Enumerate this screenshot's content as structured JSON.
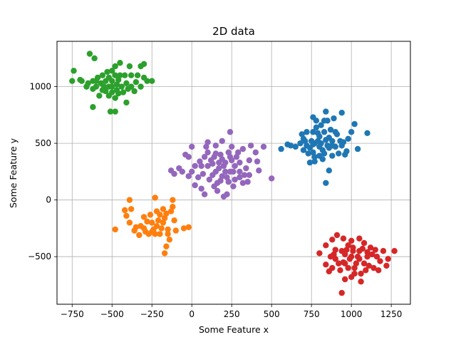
{
  "chart_data": {
    "type": "scatter",
    "title": "2D data",
    "xlabel": "Some Feature x",
    "ylabel": "Some Feature y",
    "xlim": [
      -845,
      1370
    ],
    "ylim": [
      -920,
      1400
    ],
    "xticks": [
      -750,
      -500,
      -250,
      0,
      250,
      500,
      750,
      1000,
      1250
    ],
    "xtick_labels": [
      "−750",
      "−500",
      "−250",
      "0",
      "250",
      "500",
      "750",
      "1000",
      "1250"
    ],
    "yticks": [
      -500,
      0,
      500,
      1000
    ],
    "ytick_labels": [
      "−500",
      "0",
      "500",
      "1000"
    ],
    "grid": true,
    "series": [
      {
        "color": "#1f77b4",
        "points": [
          [
            770,
            500
          ],
          [
            800,
            560
          ],
          [
            740,
            460
          ],
          [
            850,
            480
          ],
          [
            880,
            520
          ],
          [
            700,
            540
          ],
          [
            760,
            420
          ],
          [
            820,
            440
          ],
          [
            900,
            470
          ],
          [
            720,
            480
          ],
          [
            790,
            590
          ],
          [
            830,
            600
          ],
          [
            860,
            550
          ],
          [
            940,
            480
          ],
          [
            960,
            400
          ],
          [
            680,
            500
          ],
          [
            650,
            470
          ],
          [
            620,
            480
          ],
          [
            560,
            450
          ],
          [
            600,
            490
          ],
          [
            760,
            730
          ],
          [
            840,
            780
          ],
          [
            850,
            700
          ],
          [
            890,
            720
          ],
          [
            940,
            770
          ],
          [
            1020,
            670
          ],
          [
            1100,
            590
          ],
          [
            1040,
            450
          ],
          [
            1000,
            600
          ],
          [
            980,
            540
          ],
          [
            920,
            410
          ],
          [
            880,
            390
          ],
          [
            820,
            360
          ],
          [
            770,
            340
          ],
          [
            740,
            330
          ],
          [
            860,
            260
          ],
          [
            840,
            150
          ],
          [
            770,
            380
          ],
          [
            800,
            470
          ],
          [
            750,
            520
          ],
          [
            720,
            600
          ],
          [
            690,
            580
          ],
          [
            780,
            640
          ],
          [
            810,
            660
          ],
          [
            870,
            620
          ],
          [
            910,
            580
          ],
          [
            950,
            510
          ],
          [
            970,
            430
          ],
          [
            930,
            520
          ],
          [
            900,
            600
          ],
          [
            700,
            440
          ],
          [
            730,
            410
          ],
          [
            760,
            600
          ],
          [
            790,
            520
          ],
          [
            810,
            500
          ],
          [
            840,
            530
          ],
          [
            860,
            460
          ],
          [
            880,
            480
          ],
          [
            800,
            390
          ],
          [
            830,
            410
          ],
          [
            760,
            490
          ],
          [
            710,
            520
          ],
          [
            830,
            700
          ],
          [
            780,
            700
          ]
        ]
      },
      {
        "color": "#ff7f0e",
        "points": [
          [
            -220,
            -230
          ],
          [
            -250,
            -280
          ],
          [
            -180,
            -200
          ],
          [
            -300,
            -250
          ],
          [
            -150,
            -260
          ],
          [
            -280,
            -190
          ],
          [
            -200,
            -300
          ],
          [
            -330,
            -310
          ],
          [
            -360,
            -270
          ],
          [
            -390,
            -200
          ],
          [
            -410,
            -140
          ],
          [
            -380,
            -80
          ],
          [
            -420,
            -90
          ],
          [
            -390,
            0
          ],
          [
            -230,
            20
          ],
          [
            -120,
            0
          ],
          [
            -130,
            -100
          ],
          [
            -110,
            -180
          ],
          [
            -140,
            -350
          ],
          [
            -160,
            -410
          ],
          [
            -170,
            -470
          ],
          [
            -480,
            -260
          ],
          [
            -50,
            -250
          ],
          [
            -20,
            -240
          ],
          [
            -100,
            -270
          ],
          [
            -200,
            -130
          ],
          [
            -260,
            -130
          ],
          [
            -300,
            -150
          ],
          [
            -240,
            -260
          ],
          [
            -190,
            -250
          ],
          [
            -210,
            -180
          ],
          [
            -170,
            -160
          ],
          [
            -160,
            -120
          ],
          [
            -150,
            -300
          ],
          [
            -230,
            -300
          ],
          [
            -290,
            -280
          ],
          [
            -320,
            -230
          ],
          [
            -250,
            -200
          ],
          [
            -350,
            -240
          ],
          [
            -270,
            -300
          ],
          [
            -120,
            -60
          ],
          [
            -180,
            -80
          ],
          [
            -220,
            -100
          ]
        ]
      },
      {
        "color": "#2ca02c",
        "points": [
          [
            -550,
            1000
          ],
          [
            -500,
            950
          ],
          [
            -600,
            1050
          ],
          [
            -450,
            1100
          ],
          [
            -520,
            1080
          ],
          [
            -480,
            900
          ],
          [
            -580,
            920
          ],
          [
            -620,
            980
          ],
          [
            -650,
            1030
          ],
          [
            -700,
            1060
          ],
          [
            -740,
            1140
          ],
          [
            -750,
            1050
          ],
          [
            -640,
            1290
          ],
          [
            -610,
            1250
          ],
          [
            -480,
            1180
          ],
          [
            -450,
            1210
          ],
          [
            -390,
            1180
          ],
          [
            -320,
            1180
          ],
          [
            -300,
            1200
          ],
          [
            -280,
            1050
          ],
          [
            -250,
            1050
          ],
          [
            -320,
            1000
          ],
          [
            -360,
            960
          ],
          [
            -410,
            860
          ],
          [
            -510,
            780
          ],
          [
            -480,
            780
          ],
          [
            -620,
            820
          ],
          [
            -420,
            1100
          ],
          [
            -380,
            1100
          ],
          [
            -340,
            1100
          ],
          [
            -560,
            1100
          ],
          [
            -500,
            1050
          ],
          [
            -530,
            1130
          ],
          [
            -470,
            1020
          ],
          [
            -440,
            1000
          ],
          [
            -400,
            980
          ],
          [
            -540,
            960
          ],
          [
            -600,
            1000
          ],
          [
            -660,
            1000
          ],
          [
            -690,
            1050
          ],
          [
            -570,
            1030
          ],
          [
            -520,
            1000
          ],
          [
            -470,
            970
          ],
          [
            -430,
            950
          ],
          [
            -500,
            1140
          ],
          [
            -560,
            970
          ],
          [
            -520,
            920
          ],
          [
            -590,
            1080
          ],
          [
            -460,
            1060
          ],
          [
            -410,
            1030
          ],
          [
            -350,
            1040
          ],
          [
            -300,
            1080
          ],
          [
            -540,
            1050
          ],
          [
            -500,
            1000
          ],
          [
            -480,
            1100
          ],
          [
            -620,
            1050
          ],
          [
            -460,
            940
          ],
          [
            -380,
            1000
          ]
        ]
      },
      {
        "color": "#d62728",
        "points": [
          [
            1000,
            -500
          ],
          [
            1050,
            -450
          ],
          [
            950,
            -550
          ],
          [
            1100,
            -500
          ],
          [
            900,
            -520
          ],
          [
            980,
            -400
          ],
          [
            1020,
            -600
          ],
          [
            1060,
            -650
          ],
          [
            940,
            -450
          ],
          [
            1080,
            -380
          ],
          [
            1120,
            -420
          ],
          [
            1160,
            -500
          ],
          [
            1200,
            -450
          ],
          [
            1230,
            -520
          ],
          [
            1270,
            -450
          ],
          [
            1220,
            -580
          ],
          [
            1180,
            -540
          ],
          [
            880,
            -600
          ],
          [
            860,
            -630
          ],
          [
            840,
            -570
          ],
          [
            800,
            -470
          ],
          [
            840,
            -400
          ],
          [
            880,
            -350
          ],
          [
            910,
            -310
          ],
          [
            950,
            -340
          ],
          [
            1000,
            -360
          ],
          [
            1050,
            -340
          ],
          [
            960,
            -700
          ],
          [
            1000,
            -680
          ],
          [
            1060,
            -720
          ],
          [
            940,
            -820
          ],
          [
            980,
            -600
          ],
          [
            1030,
            -560
          ],
          [
            960,
            -480
          ],
          [
            1010,
            -450
          ],
          [
            1080,
            -560
          ],
          [
            1100,
            -460
          ],
          [
            1140,
            -600
          ],
          [
            920,
            -560
          ],
          [
            900,
            -440
          ],
          [
            870,
            -500
          ],
          [
            1040,
            -500
          ],
          [
            990,
            -520
          ],
          [
            960,
            -560
          ],
          [
            1010,
            -420
          ],
          [
            1130,
            -480
          ],
          [
            1070,
            -430
          ],
          [
            1150,
            -440
          ],
          [
            1170,
            -620
          ],
          [
            1090,
            -620
          ],
          [
            1020,
            -650
          ],
          [
            930,
            -620
          ],
          [
            890,
            -480
          ],
          [
            1050,
            -520
          ],
          [
            970,
            -440
          ],
          [
            1110,
            -580
          ]
        ]
      },
      {
        "color": "#9467bd",
        "points": [
          [
            200,
            300
          ],
          [
            150,
            250
          ],
          [
            250,
            350
          ],
          [
            100,
            300
          ],
          [
            300,
            250
          ],
          [
            180,
            400
          ],
          [
            220,
            200
          ],
          [
            270,
            300
          ],
          [
            120,
            350
          ],
          [
            160,
            150
          ],
          [
            230,
            420
          ],
          [
            340,
            280
          ],
          [
            360,
            350
          ],
          [
            60,
            300
          ],
          [
            80,
            380
          ],
          [
            40,
            200
          ],
          [
            0,
            250
          ],
          [
            -20,
            210
          ],
          [
            -60,
            250
          ],
          [
            -130,
            260
          ],
          [
            -110,
            230
          ],
          [
            -80,
            280
          ],
          [
            -40,
            400
          ],
          [
            -20,
            380
          ],
          [
            0,
            470
          ],
          [
            100,
            510
          ],
          [
            90,
            470
          ],
          [
            150,
            480
          ],
          [
            190,
            520
          ],
          [
            240,
            600
          ],
          [
            320,
            450
          ],
          [
            370,
            480
          ],
          [
            450,
            470
          ],
          [
            400,
            420
          ],
          [
            410,
            340
          ],
          [
            420,
            260
          ],
          [
            500,
            190
          ],
          [
            350,
            160
          ],
          [
            320,
            150
          ],
          [
            300,
            200
          ],
          [
            260,
            120
          ],
          [
            220,
            50
          ],
          [
            200,
            30
          ],
          [
            160,
            80
          ],
          [
            80,
            50
          ],
          [
            20,
            130
          ],
          [
            60,
            100
          ],
          [
            140,
            120
          ],
          [
            280,
            380
          ],
          [
            240,
            250
          ],
          [
            210,
            330
          ],
          [
            170,
            280
          ],
          [
            130,
            220
          ],
          [
            110,
            180
          ],
          [
            190,
            210
          ],
          [
            260,
            250
          ],
          [
            300,
            330
          ],
          [
            330,
            220
          ],
          [
            230,
            160
          ],
          [
            180,
            170
          ],
          [
            70,
            230
          ],
          [
            50,
            340
          ],
          [
            20,
            300
          ],
          [
            100,
            420
          ],
          [
            140,
            380
          ],
          [
            190,
            360
          ],
          [
            250,
            470
          ],
          [
            290,
            420
          ],
          [
            130,
            320
          ],
          [
            210,
            250
          ],
          [
            240,
            380
          ],
          [
            170,
            330
          ],
          [
            150,
            410
          ],
          [
            270,
            180
          ],
          [
            360,
            220
          ]
        ]
      }
    ]
  }
}
